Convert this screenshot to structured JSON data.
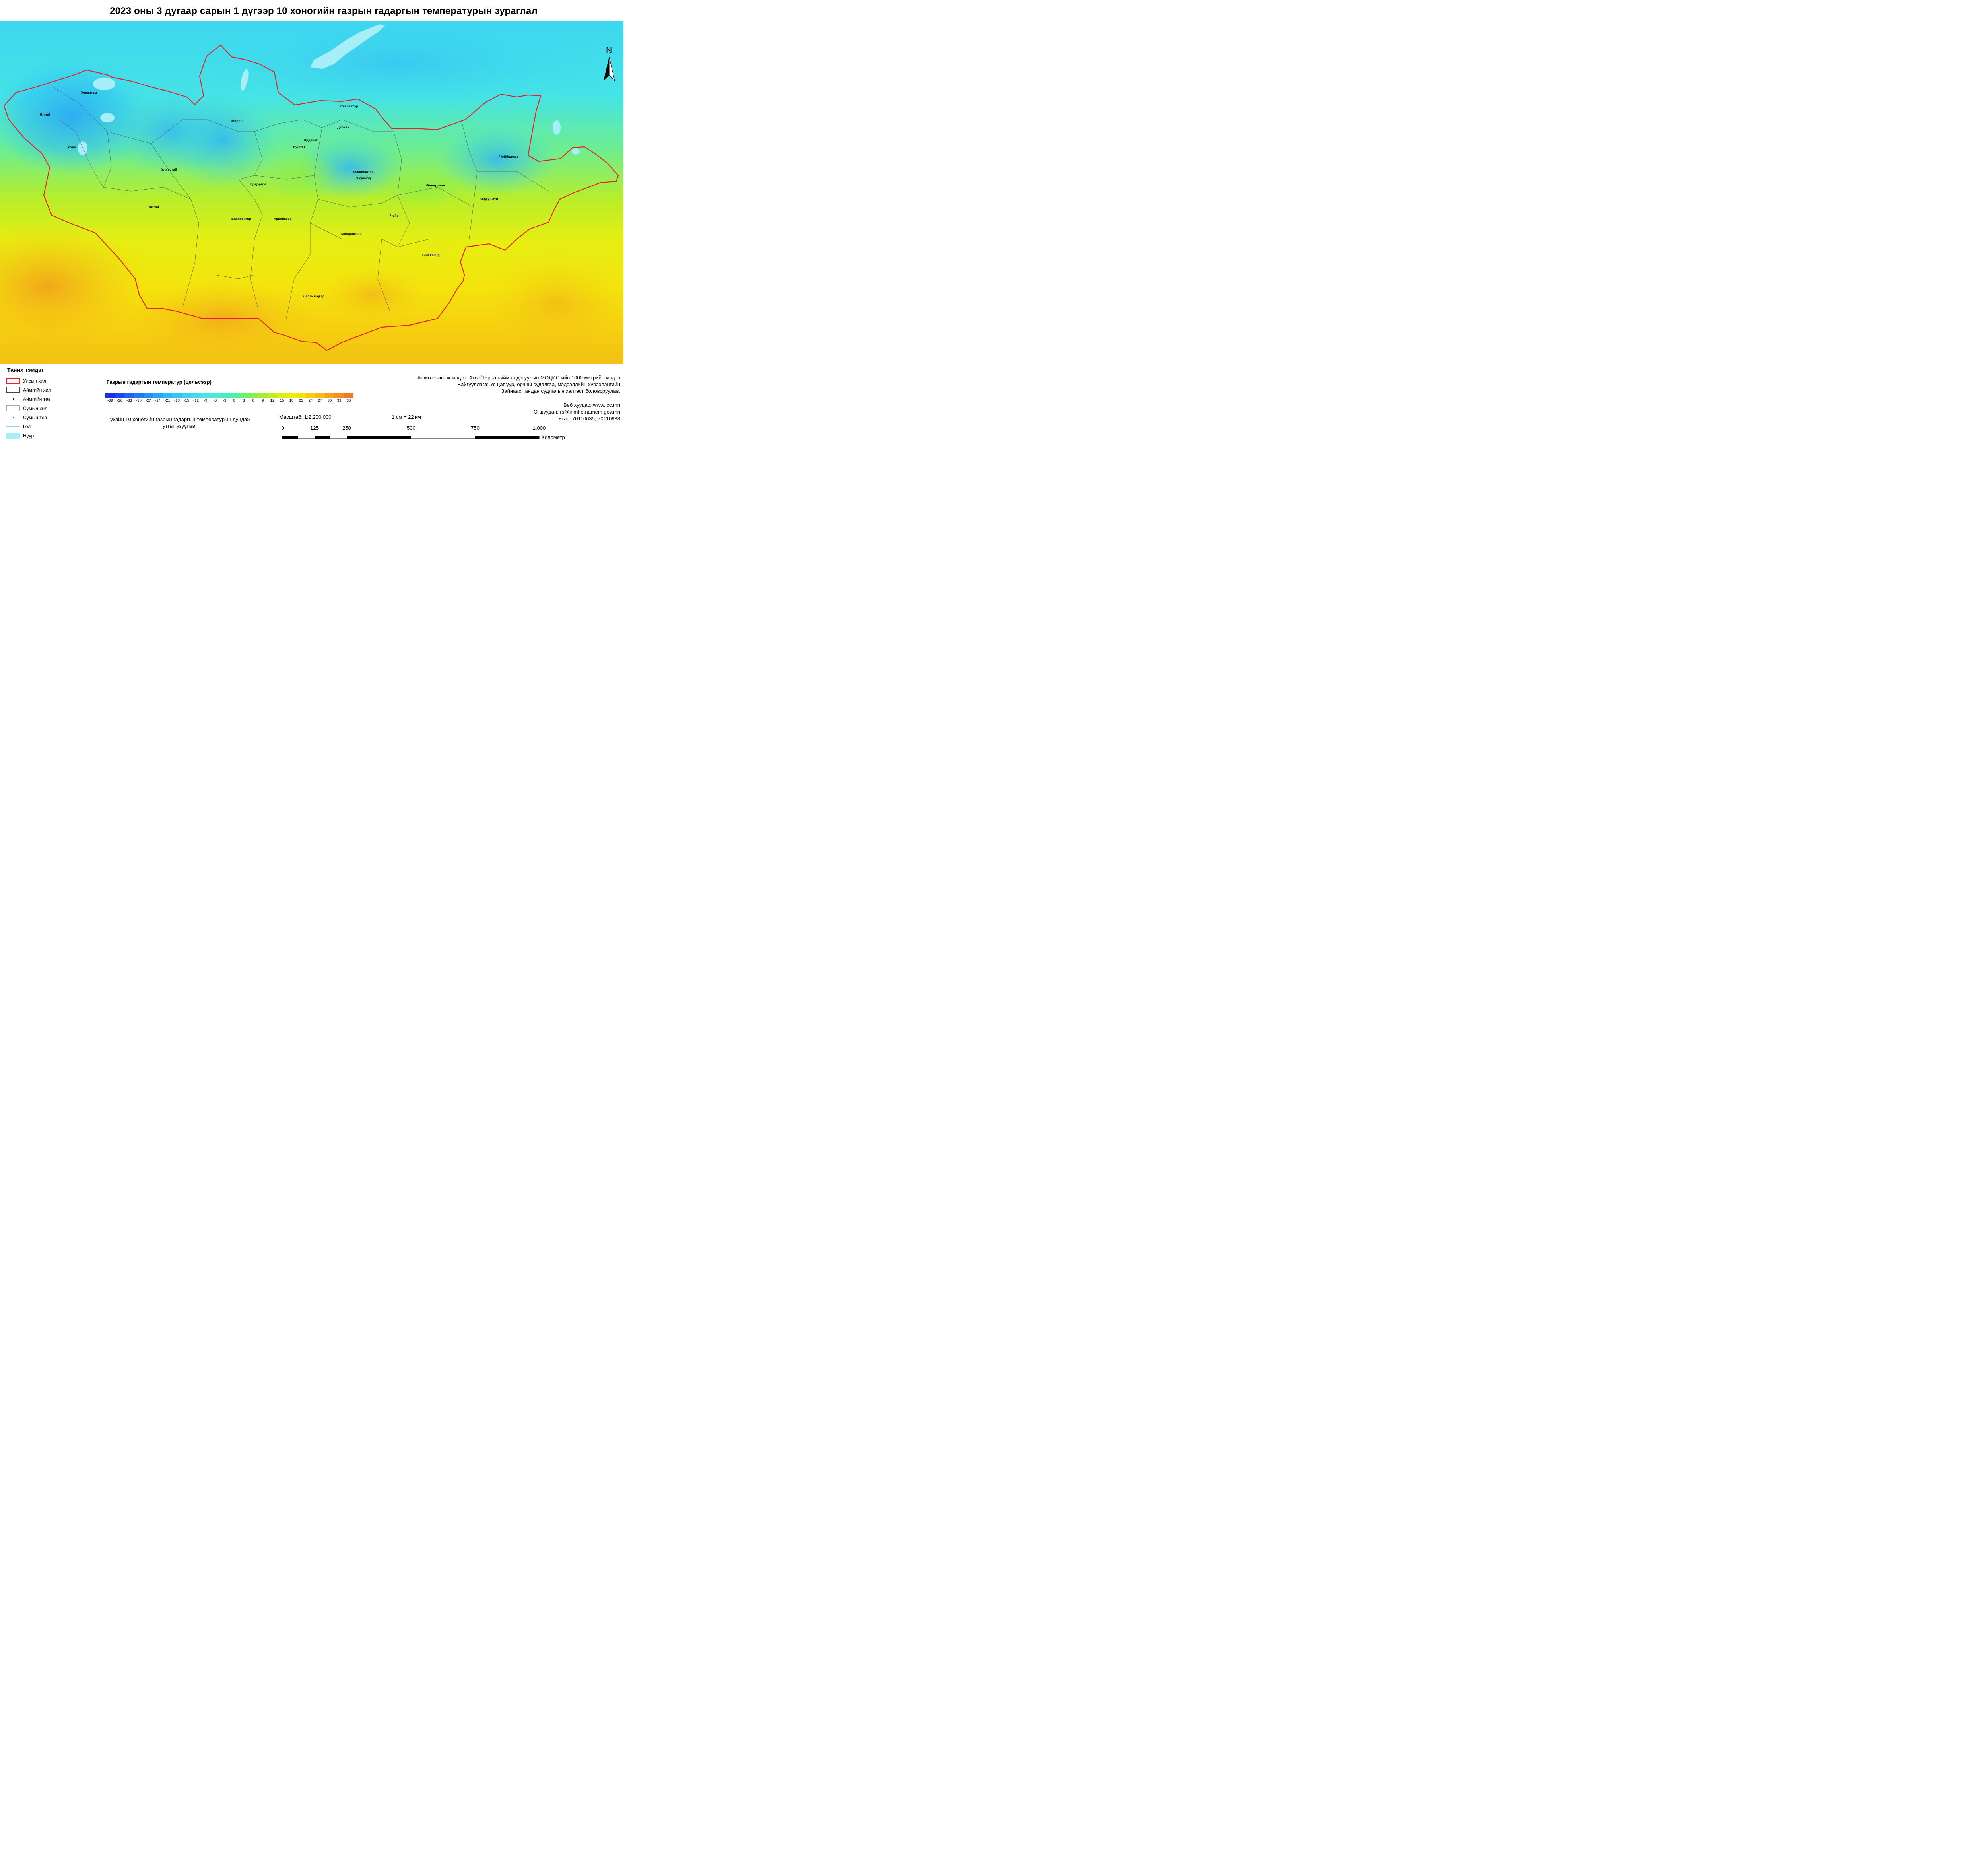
{
  "title": "2023 оны 3 дугаар сарын 1 дүгээр 10 хоногийн газрын гадаргын температурын зураглал",
  "map": {
    "north_label": "N",
    "city_labels": [
      {
        "name": "Улаангом"
      },
      {
        "name": "Өлгий"
      },
      {
        "name": "Ховд"
      },
      {
        "name": "Улиастай"
      },
      {
        "name": "Алтай"
      },
      {
        "name": "Мөрөн"
      },
      {
        "name": "Цэцэрлэг"
      },
      {
        "name": "Баянхонгор"
      },
      {
        "name": "Арвайхээр"
      },
      {
        "name": "Булган"
      },
      {
        "name": "Эрдэнэт"
      },
      {
        "name": "Сүхбаатар"
      },
      {
        "name": "Дархан"
      },
      {
        "name": "Улаанбаатар"
      },
      {
        "name": "Зуунмод"
      },
      {
        "name": "Чойр"
      },
      {
        "name": "Мандалговь"
      },
      {
        "name": "Сайншанд"
      },
      {
        "name": "Даланзадгад"
      },
      {
        "name": "Өндөрхаан"
      },
      {
        "name": "Баруун-Урт"
      },
      {
        "name": "Чойбалсан"
      }
    ]
  },
  "legend": {
    "title": "Таних тэмдэг",
    "items": [
      {
        "label": "Улсын хил",
        "symbol": "red-outline-icon"
      },
      {
        "label": "Аймгийн хил",
        "symbol": "dark-outline-icon"
      },
      {
        "label": "Аймгийн төв",
        "symbol": "dot-icon"
      },
      {
        "label": "Сумын хил",
        "symbol": "light-outline-icon"
      },
      {
        "label": "Сумын төв",
        "symbol": "small-dot-icon"
      },
      {
        "label": "Гол",
        "symbol": "river-line-icon"
      },
      {
        "label": "Нуур",
        "symbol": "lake-fill-icon"
      }
    ]
  },
  "colorbar": {
    "title": "Газрын гадаргын температур (цельсээр)",
    "ticks": [
      "-39",
      "-36",
      "-33",
      "-30",
      "-27",
      "-24",
      "-21",
      "-18",
      "-15",
      "-12",
      "-9",
      "-6",
      "-3",
      "0",
      "3",
      "6",
      "9",
      "12",
      "15",
      "18",
      "21",
      "24",
      "27",
      "30",
      "33",
      "36"
    ],
    "colors": [
      "#1a2ee8",
      "#1e45ee",
      "#2060f2",
      "#2279f5",
      "#2490f7",
      "#27a6f8",
      "#2ab9f8",
      "#2fc8f6",
      "#36d4f2",
      "#3edeec",
      "#45e6e4",
      "#46ecd6",
      "#45efc2",
      "#4ff29e",
      "#69f27a",
      "#86f050",
      "#a6ee2c",
      "#c2ee1e",
      "#dcee14",
      "#eeed0e",
      "#f6e10c",
      "#f7cf0f",
      "#f6bb14",
      "#f4a61a",
      "#f2901f",
      "#ef7a23"
    ]
  },
  "note": "Тухайн 10 хоногийн газрын гадаргын температурын дундаж утгыг үзүүлэв",
  "scale": {
    "text": "Масштаб: 1:2,200,000",
    "cm_text": "1 см = 22 км",
    "ticks": [
      "0",
      "125",
      "250",
      "500",
      "750",
      "1,000"
    ],
    "unit": "Километр"
  },
  "source_lines": [
    "Ашиглaсан эх мэдээ: Аква/Терра хиймэл дагуулын МОДИС-ийн 1000 метрийн мэдээ",
    "Байгууллага: Ус цаг уур, орчны судалгаа, мэдээллийн хүрээлэнгийн",
    "Зайнаас тандан судлалын хэлтэст боловсруулав."
  ],
  "contact_lines": [
    "Веб хуудас: www.icc.mn",
    "Э-шуудан: rs@irimhe.namem.gov.mn",
    "Утас: 70110635, 70110638"
  ]
}
